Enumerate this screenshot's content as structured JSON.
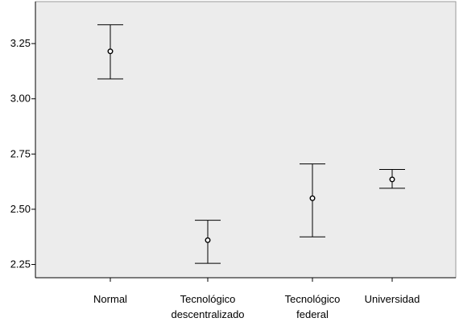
{
  "chart_data": {
    "type": "errorbar",
    "title": "",
    "xlabel": "",
    "ylabel": "",
    "categories": [
      [
        "Normal"
      ],
      [
        "Tecnológico",
        "descentralizado"
      ],
      [
        "Tecnológico",
        "federal"
      ],
      [
        "Universidad"
      ]
    ],
    "series": [
      {
        "mean": [
          3.215,
          2.36,
          2.55,
          2.635
        ],
        "lower": [
          3.09,
          2.255,
          2.375,
          2.595
        ],
        "upper": [
          3.335,
          2.45,
          2.705,
          2.68
        ]
      }
    ],
    "yticks": [
      2.25,
      2.5,
      2.75,
      3.0,
      3.25
    ],
    "ytick_labels": [
      "2.25",
      "2.50",
      "2.75",
      "3.00",
      "3.25"
    ],
    "ylim": [
      2.19,
      3.44
    ],
    "grid": false,
    "colors": {
      "plot_background": "#ececec",
      "page_background": "#ffffff",
      "axis": "#000000",
      "marker_fill": "#ffffff"
    }
  }
}
